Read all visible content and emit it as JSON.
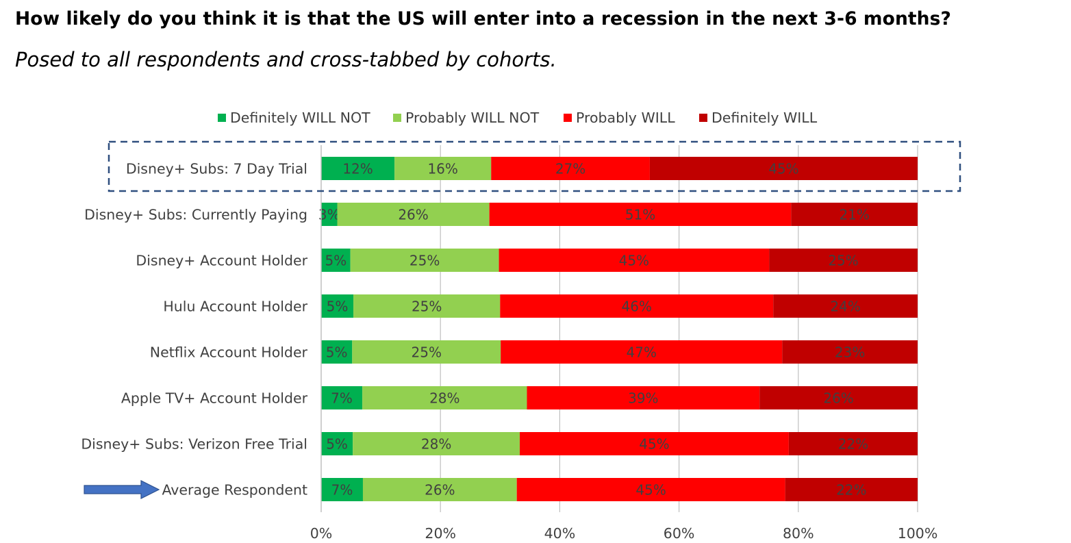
{
  "page": {
    "title": "How likely do you think it is that the US will enter into a recession in the next 3-6 months?",
    "subtitle": "Posed to all respondents and cross-tabbed by cohorts."
  },
  "chart_data": {
    "type": "bar",
    "orientation": "horizontal",
    "stacked": true,
    "normalized": true,
    "categories": [
      "Disney+ Subs: 7 Day Trial",
      "Disney+ Subs: Currently Paying",
      "Disney+ Account Holder",
      "Hulu Account Holder",
      "Netflix Account Holder",
      "Apple TV+ Account Holder",
      "Disney+ Subs: Verizon Free Trial",
      "Average Respondent"
    ],
    "series": [
      {
        "name": "Definitely WILL NOT",
        "color": "#00b050",
        "values": [
          12,
          3,
          5,
          5,
          5,
          7,
          5,
          7
        ],
        "exact": [
          12.3,
          2.7,
          4.9,
          5.4,
          5.2,
          6.9,
          5.3,
          7.0
        ]
      },
      {
        "name": "Probably WILL NOT",
        "color": "#92d050",
        "values": [
          16,
          26,
          25,
          25,
          25,
          28,
          28,
          26
        ],
        "exact": [
          16.2,
          25.5,
          24.9,
          24.6,
          24.9,
          27.6,
          28.0,
          25.8
        ]
      },
      {
        "name": "Probably WILL",
        "color": "#ff0000",
        "values": [
          27,
          51,
          45,
          46,
          47,
          39,
          45,
          45
        ],
        "exact": [
          26.6,
          50.6,
          45.3,
          45.8,
          47.2,
          39.0,
          45.1,
          45.0
        ]
      },
      {
        "name": "Definitely WILL",
        "color": "#c00000",
        "values": [
          45,
          21,
          25,
          24,
          23,
          26,
          22,
          22
        ],
        "exact": [
          44.9,
          21.2,
          24.9,
          24.2,
          22.7,
          26.5,
          21.6,
          22.2
        ]
      }
    ],
    "x_ticks": [
      "0%",
      "20%",
      "40%",
      "60%",
      "80%",
      "100%"
    ],
    "xlim": [
      0,
      100
    ],
    "legend_position": "top-center",
    "grid": "vertical",
    "highlight_category": "Disney+ Subs: 7 Day Trial",
    "arrow_category": "Average Respondent",
    "annotation_colors": {
      "highlight_box": "#2f4f7f",
      "arrow": "#4472c4",
      "arrow_stroke": "#2f528f"
    }
  }
}
